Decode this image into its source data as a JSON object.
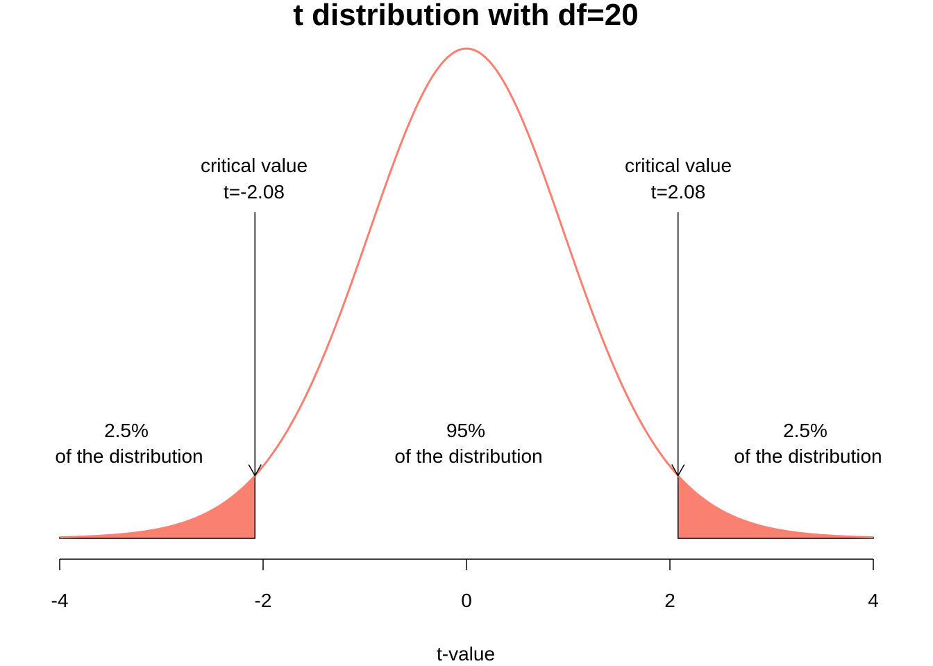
{
  "chart_data": {
    "type": "area",
    "title": "t distribution with df=20",
    "xlabel": "t-value",
    "ylabel": "",
    "df": 20,
    "xlim": [
      -4,
      4
    ],
    "x_ticks": [
      -4,
      -2,
      0,
      2,
      4
    ],
    "x_tick_labels": [
      "-4",
      "-2",
      "0",
      "2",
      "4"
    ],
    "y_axis_shown": false,
    "grid": false,
    "series": [
      {
        "x": [
          -4.0,
          -3.5,
          -3.0,
          -2.5,
          -2.0,
          -1.5,
          -1.0,
          -0.5,
          0.0,
          0.5,
          1.0,
          1.5,
          2.0,
          2.5,
          3.0,
          3.5,
          4.0
        ],
        "y": [
          0.0009,
          0.0026,
          0.0072,
          0.0195,
          0.0536,
          0.1311,
          0.236,
          0.3458,
          0.394,
          0.3458,
          0.236,
          0.1311,
          0.0536,
          0.0195,
          0.0072,
          0.0026,
          0.0009
        ]
      }
    ],
    "critical_values": [
      -2.08,
      2.08
    ],
    "shaded_regions": [
      {
        "from": -4,
        "to": -2.08
      },
      {
        "from": 2.08,
        "to": 4
      }
    ],
    "annotations": {
      "left_critical": {
        "line1": "critical value",
        "line2": "t=-2.08"
      },
      "right_critical": {
        "line1": "critical value",
        "line2": "t=2.08"
      },
      "left_tail": {
        "line1": "2.5%",
        "line2": "of the distribution"
      },
      "center": {
        "line1": "95%",
        "line2": "of the distribution"
      },
      "right_tail": {
        "line1": "2.5%",
        "line2": "of the distribution"
      }
    },
    "colors": {
      "curve": "#FA8072",
      "fill": "#FA8072",
      "lines": "#000000"
    }
  }
}
